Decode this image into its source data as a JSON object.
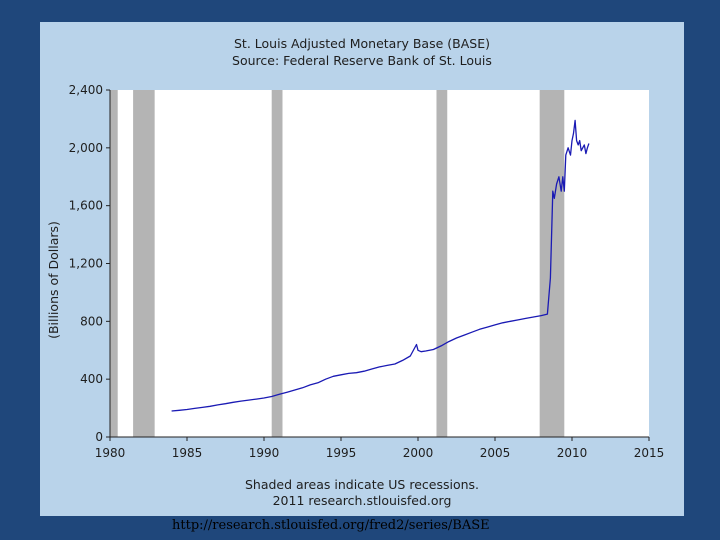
{
  "page": {
    "url_text": "http://research.stlouisfed.org/fred2/series/BASE"
  },
  "chart_data": {
    "type": "line",
    "title": "St. Louis Adjusted Monetary Base (BASE)",
    "subtitle": "Source: Federal Reserve Bank of St. Louis",
    "xlabel": "",
    "ylabel": "(Billions of Dollars)",
    "xlim": [
      1980,
      2015
    ],
    "ylim": [
      0,
      2400
    ],
    "x_ticks": [
      1980,
      1985,
      1990,
      1995,
      2000,
      2005,
      2010,
      2015
    ],
    "x_tick_labels": [
      "1980",
      "1985",
      "1990",
      "1995",
      "2000",
      "2005",
      "2010",
      "2015"
    ],
    "y_ticks": [
      0,
      400,
      800,
      1200,
      1600,
      2000,
      2400
    ],
    "y_tick_labels": [
      "0",
      "400",
      "800",
      "1,200",
      "1,600",
      "2,000",
      "2,400"
    ],
    "grid": false,
    "legend": "none",
    "colors": {
      "line": "#1a1ab4",
      "recession": "#b4b4b4",
      "background": "#b9d3ea",
      "plot": "#ffffff",
      "frame": "#1f477b"
    },
    "recessions": [
      [
        1980.0,
        1980.5
      ],
      [
        1981.5,
        1982.9
      ],
      [
        1990.5,
        1991.2
      ],
      [
        2001.2,
        2001.9
      ],
      [
        2007.9,
        2009.5
      ]
    ],
    "series": [
      {
        "x": [
          1984.0,
          1984.5,
          1985.0,
          1985.5,
          1986.0,
          1986.5,
          1987.0,
          1987.5,
          1988.0,
          1988.5,
          1989.0,
          1989.5,
          1990.0,
          1990.5,
          1991.0,
          1991.5,
          1992.0,
          1992.5,
          1993.0,
          1993.5,
          1994.0,
          1994.5,
          1995.0,
          1995.5,
          1996.0,
          1996.5,
          1997.0,
          1997.5,
          1998.0,
          1998.5,
          1999.0,
          1999.5,
          1999.9,
          2000.0,
          2000.2,
          2000.5,
          2001.0,
          2001.5,
          2002.0,
          2002.5,
          2003.0,
          2003.5,
          2004.0,
          2004.5,
          2005.0,
          2005.5,
          2006.0,
          2006.5,
          2007.0,
          2007.5,
          2008.0,
          2008.4,
          2008.6,
          2008.75,
          2008.85,
          2009.0,
          2009.15,
          2009.3,
          2009.4,
          2009.5,
          2009.6,
          2009.75,
          2009.9,
          2010.0,
          2010.1,
          2010.2,
          2010.3,
          2010.4,
          2010.5,
          2010.6,
          2010.8,
          2010.9,
          2011.0,
          2011.1
        ],
        "y": [
          180,
          185,
          190,
          198,
          205,
          212,
          222,
          230,
          240,
          248,
          255,
          262,
          270,
          280,
          295,
          310,
          325,
          340,
          360,
          375,
          400,
          420,
          430,
          440,
          445,
          455,
          470,
          485,
          495,
          505,
          530,
          560,
          640,
          600,
          590,
          595,
          605,
          630,
          660,
          685,
          705,
          725,
          745,
          760,
          775,
          790,
          800,
          810,
          820,
          830,
          840,
          850,
          1100,
          1700,
          1650,
          1750,
          1800,
          1700,
          1800,
          1700,
          1950,
          2000,
          1950,
          2050,
          2100,
          2190,
          2050,
          2020,
          2050,
          1980,
          2020,
          1960,
          2000,
          2030
        ]
      }
    ],
    "caption_line1": "Shaded areas indicate US recessions.",
    "caption_line2": "2011 research.stlouisfed.org"
  }
}
